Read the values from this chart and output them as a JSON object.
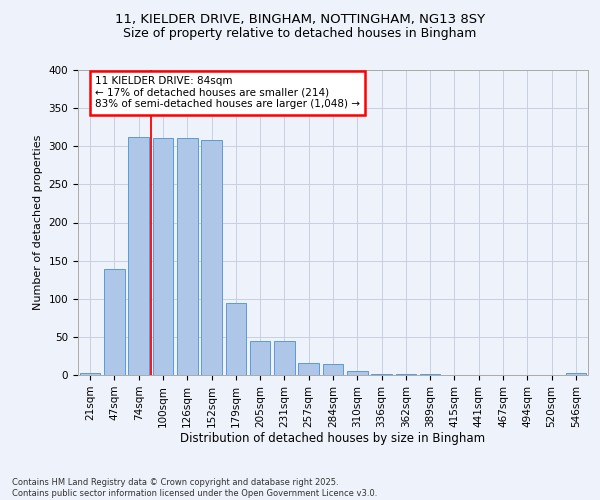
{
  "title1": "11, KIELDER DRIVE, BINGHAM, NOTTINGHAM, NG13 8SY",
  "title2": "Size of property relative to detached houses in Bingham",
  "xlabel": "Distribution of detached houses by size in Bingham",
  "ylabel": "Number of detached properties",
  "categories": [
    "21sqm",
    "47sqm",
    "74sqm",
    "100sqm",
    "126sqm",
    "152sqm",
    "179sqm",
    "205sqm",
    "231sqm",
    "257sqm",
    "284sqm",
    "310sqm",
    "336sqm",
    "362sqm",
    "389sqm",
    "415sqm",
    "441sqm",
    "467sqm",
    "494sqm",
    "520sqm",
    "546sqm"
  ],
  "values": [
    3,
    139,
    312,
    311,
    311,
    308,
    94,
    45,
    45,
    16,
    15,
    5,
    1,
    1,
    1,
    0,
    0,
    0,
    0,
    0,
    2
  ],
  "bar_color": "#aec6e8",
  "bar_edge_color": "#5b9bd5",
  "vline_x": 2.5,
  "vline_color": "red",
  "annotation_text": "11 KIELDER DRIVE: 84sqm\n← 17% of detached houses are smaller (214)\n83% of semi-detached houses are larger (1,048) →",
  "annotation_box_color": "white",
  "annotation_box_edge_color": "red",
  "footer_text": "Contains HM Land Registry data © Crown copyright and database right 2025.\nContains public sector information licensed under the Open Government Licence v3.0.",
  "ylim": [
    0,
    400
  ],
  "background_color": "#eef2fb",
  "grid_color": "#c8cfe0"
}
